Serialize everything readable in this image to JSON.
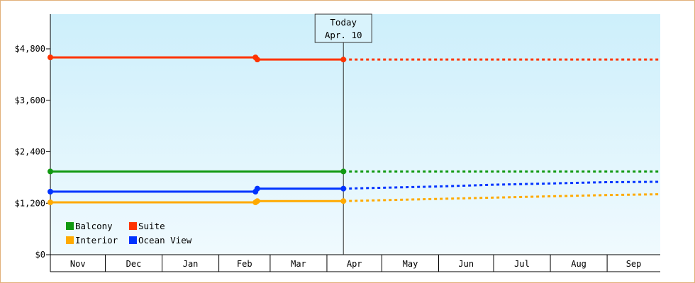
{
  "chart_data": {
    "type": "line",
    "title": "",
    "xlabel": "",
    "ylabel": "",
    "ylim": [
      0,
      6000
    ],
    "y_ticks": [
      {
        "value": 0,
        "label": "$0"
      },
      {
        "value": 1200,
        "label": "$1,200"
      },
      {
        "value": 2400,
        "label": "$2,400"
      },
      {
        "value": 3600,
        "label": "$3,600"
      },
      {
        "value": 4800,
        "label": "$4,800"
      }
    ],
    "x_axis": {
      "start": "2024-11-01",
      "end": "2025-09-30",
      "months": [
        {
          "label": "Nov",
          "start": "2024-11-01",
          "end": "2024-12-01"
        },
        {
          "label": "Dec",
          "start": "2024-12-01",
          "end": "2025-01-01"
        },
        {
          "label": "Jan",
          "start": "2025-01-01",
          "end": "2025-02-01"
        },
        {
          "label": "Feb",
          "start": "2025-02-01",
          "end": "2025-03-01"
        },
        {
          "label": "Mar",
          "start": "2025-03-01",
          "end": "2025-04-01"
        },
        {
          "label": "Apr",
          "start": "2025-04-01",
          "end": "2025-05-01"
        },
        {
          "label": "May",
          "start": "2025-05-01",
          "end": "2025-06-01"
        },
        {
          "label": "Jun",
          "start": "2025-06-01",
          "end": "2025-07-01"
        },
        {
          "label": "Jul",
          "start": "2025-07-01",
          "end": "2025-08-01"
        },
        {
          "label": "Aug",
          "start": "2025-08-01",
          "end": "2025-09-01"
        },
        {
          "label": "Sep",
          "start": "2025-09-01",
          "end": "2025-09-30"
        }
      ]
    },
    "today": {
      "date": "2025-04-10",
      "line1": "Today",
      "line2": "Apr. 10"
    },
    "grid": false,
    "legend_position": "bottom-left",
    "series": [
      {
        "name": "Suite",
        "color": "#ff3300",
        "history": [
          [
            "2024-11-01",
            4600
          ],
          [
            "2025-02-21",
            4600
          ],
          [
            "2025-02-22",
            4550
          ],
          [
            "2025-04-10",
            4550
          ]
        ],
        "markers": [
          "2024-11-01",
          "2025-02-21",
          "2025-02-22",
          "2025-04-10"
        ],
        "forecast": [
          [
            "2025-04-10",
            4550
          ],
          [
            "2025-09-30",
            4550
          ]
        ]
      },
      {
        "name": "Balcony",
        "color": "#119911",
        "history": [
          [
            "2024-11-01",
            1940
          ],
          [
            "2025-04-10",
            1940
          ]
        ],
        "markers": [
          "2024-11-01",
          "2025-04-10"
        ],
        "forecast": [
          [
            "2025-04-10",
            1940
          ],
          [
            "2025-09-30",
            1940
          ]
        ]
      },
      {
        "name": "Ocean View",
        "color": "#0033ff",
        "history": [
          [
            "2024-11-01",
            1470
          ],
          [
            "2025-02-21",
            1470
          ],
          [
            "2025-02-22",
            1540
          ],
          [
            "2025-04-10",
            1540
          ]
        ],
        "markers": [
          "2024-11-01",
          "2025-02-21",
          "2025-02-22",
          "2025-04-10"
        ],
        "forecast": [
          [
            "2025-04-10",
            1540
          ],
          [
            "2025-05-31",
            1590
          ],
          [
            "2025-06-30",
            1630
          ],
          [
            "2025-07-31",
            1660
          ],
          [
            "2025-08-31",
            1690
          ],
          [
            "2025-09-30",
            1700
          ]
        ]
      },
      {
        "name": "Interior",
        "color": "#ffaa00",
        "history": [
          [
            "2024-11-01",
            1220
          ],
          [
            "2025-02-21",
            1220
          ],
          [
            "2025-02-22",
            1250
          ],
          [
            "2025-04-10",
            1250
          ]
        ],
        "markers": [
          "2024-11-01",
          "2025-02-21",
          "2025-02-22",
          "2025-04-10"
        ],
        "forecast": [
          [
            "2025-04-10",
            1250
          ],
          [
            "2025-05-31",
            1300
          ],
          [
            "2025-06-30",
            1330
          ],
          [
            "2025-07-31",
            1360
          ],
          [
            "2025-08-31",
            1390
          ],
          [
            "2025-09-30",
            1410
          ]
        ]
      }
    ],
    "legend": [
      {
        "name": "Balcony",
        "color": "#119911"
      },
      {
        "name": "Suite",
        "color": "#ff3300"
      },
      {
        "name": "Interior",
        "color": "#ffaa00"
      },
      {
        "name": "Ocean View",
        "color": "#0033ff"
      }
    ]
  }
}
